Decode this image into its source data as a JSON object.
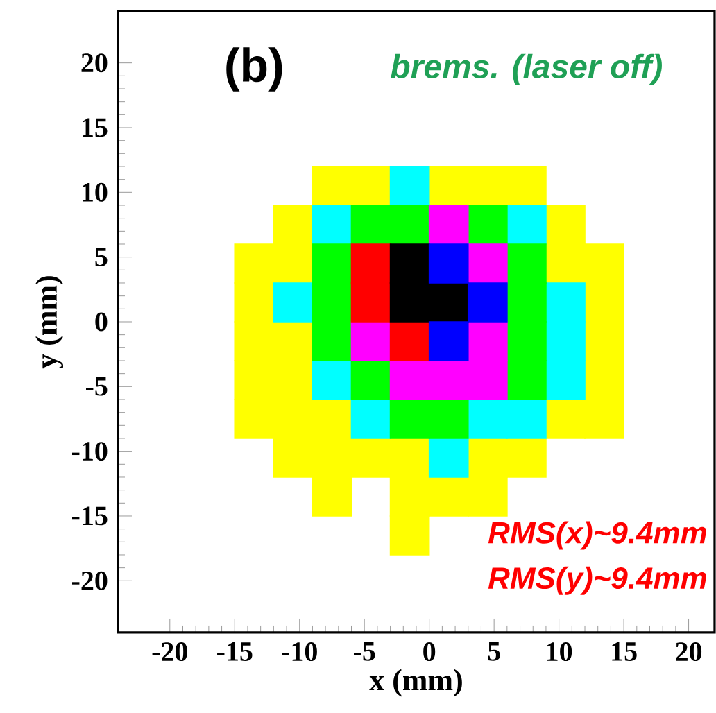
{
  "chart_data": {
    "type": "scatter",
    "marker": "square",
    "xlabel": "x (mm)",
    "ylabel": "y (mm)",
    "annotations": [
      "(b)",
      "brems. (laser off)",
      "RMS(x)~9.4mm",
      "RMS(y)~9.4mm"
    ],
    "xlim": [
      -24,
      22
    ],
    "ylim": [
      -24,
      24
    ],
    "xticks": [
      -20,
      -15,
      -10,
      -5,
      0,
      5,
      10,
      15,
      20
    ],
    "yticks": [
      -20,
      -15,
      -10,
      -5,
      0,
      5,
      10,
      15,
      20
    ],
    "series": [
      {
        "color": "#ffff00",
        "x": [
          -7.5,
          -4.5,
          1.5,
          4.5,
          7.5,
          -10.5,
          10.5,
          -13.5,
          -10.5,
          10.5,
          13.5,
          -13.5,
          13.5,
          -13.5,
          -10.5,
          13.5,
          -13.5,
          -10.5,
          13.5,
          -13.5,
          -10.5,
          -7.5,
          10.5,
          13.5,
          -10.5,
          -7.5,
          -4.5,
          -1.5,
          4.5,
          7.5,
          -7.5,
          -1.5,
          1.5,
          4.5,
          -1.5
        ],
        "values": [
          10.5,
          10.5,
          10.5,
          10.5,
          10.5,
          7.5,
          7.5,
          4.5,
          4.5,
          4.5,
          4.5,
          1.5,
          1.5,
          -1.5,
          -1.5,
          -1.5,
          -4.5,
          -4.5,
          -4.5,
          -7.5,
          -7.5,
          -7.5,
          -7.5,
          -7.5,
          -10.5,
          -10.5,
          -10.5,
          -10.5,
          -10.5,
          -10.5,
          -13.5,
          -13.5,
          -13.5,
          -13.5,
          -16.5
        ]
      },
      {
        "color": "#00ffff",
        "x": [
          -1.5,
          -7.5,
          7.5,
          -10.5,
          10.5,
          10.5,
          -7.5,
          10.5,
          -4.5,
          4.5,
          7.5,
          1.5
        ],
        "values": [
          10.5,
          7.5,
          7.5,
          1.5,
          1.5,
          -1.5,
          -4.5,
          -4.5,
          -7.5,
          -7.5,
          -7.5,
          -10.5
        ]
      },
      {
        "color": "#00ff00",
        "x": [
          -4.5,
          -1.5,
          4.5,
          -7.5,
          7.5,
          -7.5,
          7.5,
          -7.5,
          7.5,
          -4.5,
          7.5,
          -1.5,
          1.5
        ],
        "values": [
          7.5,
          7.5,
          7.5,
          4.5,
          4.5,
          1.5,
          1.5,
          -1.5,
          -1.5,
          -4.5,
          -4.5,
          -7.5,
          -7.5
        ]
      },
      {
        "color": "#ff00ff",
        "x": [
          1.5,
          4.5,
          -4.5,
          4.5,
          -1.5,
          1.5,
          4.5
        ],
        "values": [
          7.5,
          4.5,
          -1.5,
          -1.5,
          -4.5,
          -4.5,
          -4.5
        ]
      },
      {
        "color": "#ff0000",
        "x": [
          -4.5,
          -4.5,
          -1.5
        ],
        "values": [
          4.5,
          1.5,
          -1.5
        ]
      },
      {
        "color": "#000000",
        "x": [
          -1.5,
          -1.5,
          1.5
        ],
        "values": [
          4.5,
          1.5,
          1.5
        ]
      },
      {
        "color": "#0000ff",
        "x": [
          1.5,
          4.5,
          1.5
        ],
        "values": [
          4.5,
          1.5,
          -1.5
        ]
      }
    ]
  }
}
